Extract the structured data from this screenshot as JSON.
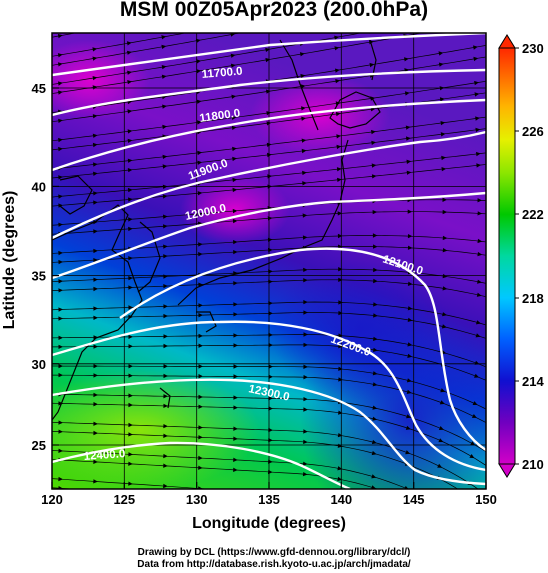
{
  "title": "MSM 00Z05Apr2023 (200.0hPa)",
  "x_axis": {
    "label": "Longitude (degrees)",
    "ticks": [
      "120",
      "125",
      "130",
      "135",
      "140",
      "145",
      "150"
    ],
    "range": [
      120,
      150
    ]
  },
  "y_axis": {
    "label": "Latitude  (degrees)",
    "ticks": [
      "25",
      "30",
      "35",
      "40",
      "45"
    ],
    "range": [
      23,
      48
    ]
  },
  "colorbar": {
    "ticks": [
      "230",
      "226",
      "222",
      "218",
      "214",
      "210"
    ],
    "range": [
      210,
      230
    ]
  },
  "contour_labels": [
    "11700.0",
    "11800.0",
    "11900.0",
    "12000.0",
    "12100.0",
    "12200.0",
    "12300.0",
    "12400.0"
  ],
  "credits": {
    "line1": "Drawing by DCL (https://www.gfd-dennou.org/library/dcl/)",
    "line2": "Data from http://database.rish.kyoto-u.ac.jp/arch/jmadata/"
  }
}
